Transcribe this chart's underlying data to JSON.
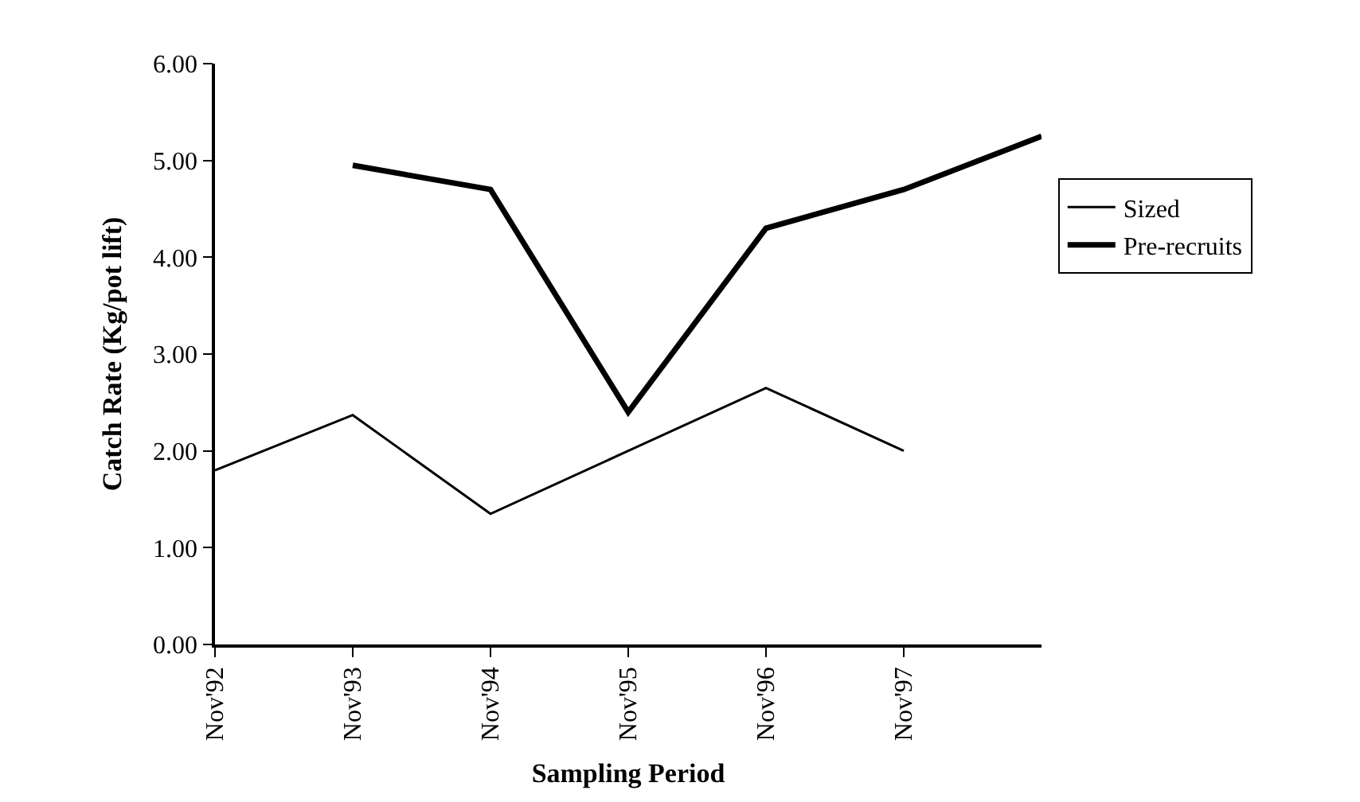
{
  "chart_data": {
    "type": "line",
    "xlabel": "Sampling Period",
    "ylabel": "Catch Rate (Kg/pot lift)",
    "categories": [
      "Nov'92",
      "Nov'93",
      "Nov'94",
      "Nov'95",
      "Nov'96",
      "Nov'97",
      null
    ],
    "series": [
      {
        "name": "Sized",
        "color": "#000000",
        "values": [
          1.8,
          2.37,
          1.35,
          2.0,
          2.65,
          2.0,
          null
        ]
      },
      {
        "name": "Pre-recruits",
        "color": "#000000",
        "values": [
          null,
          4.95,
          4.7,
          2.4,
          4.3,
          4.7,
          5.25
        ]
      }
    ],
    "ylim": [
      0,
      6
    ],
    "yticks": [
      {
        "value": 0,
        "label": "0.00"
      },
      {
        "value": 1,
        "label": "1.00"
      },
      {
        "value": 2,
        "label": "2.00"
      },
      {
        "value": 3,
        "label": "3.00"
      },
      {
        "value": 4,
        "label": "4.00"
      },
      {
        "value": 5,
        "label": "5.00"
      },
      {
        "value": 6,
        "label": "6.00"
      }
    ],
    "legend": "right",
    "marker": "none",
    "line_style": "solid"
  }
}
